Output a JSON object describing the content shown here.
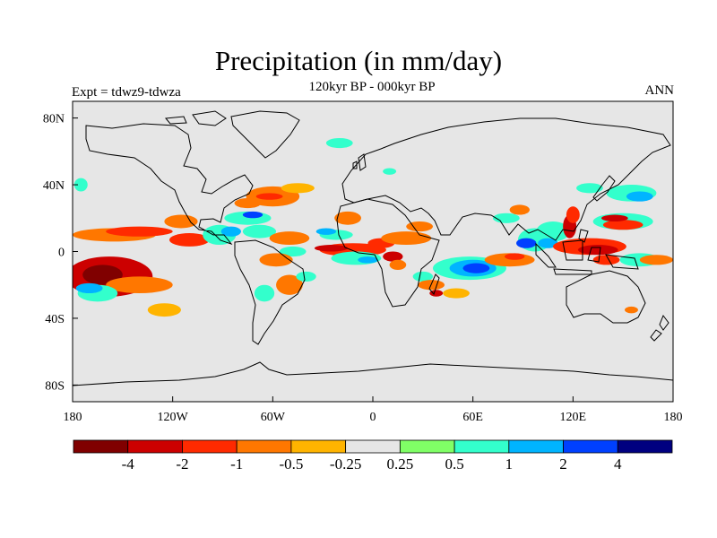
{
  "title": "Precipitation (in mm/day)",
  "subtitle": "120kyr BP - 000kyr BP",
  "left_label": "Expt = tdwz9-tdwza",
  "right_label": "ANN",
  "map": {
    "lon_range": [
      -180,
      180
    ],
    "lat_range": [
      -90,
      90
    ],
    "background_color": "#e6e6e6",
    "x_ticks": [
      {
        "value": -180,
        "label": "180"
      },
      {
        "value": -120,
        "label": "120W"
      },
      {
        "value": -60,
        "label": "60W"
      },
      {
        "value": 0,
        "label": "0"
      },
      {
        "value": 60,
        "label": "60E"
      },
      {
        "value": 120,
        "label": "120E"
      },
      {
        "value": 180,
        "label": "180"
      }
    ],
    "y_ticks": [
      {
        "value": 80,
        "label": "80N"
      },
      {
        "value": 40,
        "label": "40N"
      },
      {
        "value": 0,
        "label": "0"
      },
      {
        "value": -40,
        "label": "40S"
      },
      {
        "value": -80,
        "label": "80S"
      }
    ]
  },
  "colorbar": {
    "colors": [
      "#800000",
      "#cc0000",
      "#ff2a00",
      "#ff7700",
      "#ffb400",
      "#e6e6e6",
      "#80ff66",
      "#33ffcc",
      "#00b4ff",
      "#0040ff",
      "#000080"
    ],
    "labels": [
      "-4",
      "-2",
      "-1",
      "-0.5",
      "-0.25",
      "0.25",
      "0.5",
      "1",
      "2",
      "4"
    ]
  },
  "anomalies": [
    {
      "lon": -158,
      "lat": -15,
      "rx": 26,
      "ry": 12,
      "level": -2
    },
    {
      "lon": -162,
      "lat": -14,
      "rx": 12,
      "ry": 6,
      "level": -4
    },
    {
      "lon": -140,
      "lat": -20,
      "rx": 20,
      "ry": 5,
      "level": -0.5
    },
    {
      "lon": -125,
      "lat": -35,
      "rx": 10,
      "ry": 4,
      "level": -0.25
    },
    {
      "lon": -165,
      "lat": -25,
      "rx": 12,
      "ry": 5,
      "level": 0.5
    },
    {
      "lon": -170,
      "lat": -22,
      "rx": 8,
      "ry": 3,
      "level": 1
    },
    {
      "lon": -155,
      "lat": 10,
      "rx": 25,
      "ry": 4,
      "level": -0.5
    },
    {
      "lon": -140,
      "lat": 12,
      "rx": 20,
      "ry": 3,
      "level": -1
    },
    {
      "lon": -110,
      "lat": 7,
      "rx": 12,
      "ry": 4,
      "level": -1
    },
    {
      "lon": -115,
      "lat": 18,
      "rx": 10,
      "ry": 4,
      "level": -0.5
    },
    {
      "lon": -92,
      "lat": 10,
      "rx": 10,
      "ry": 6,
      "level": 0.5
    },
    {
      "lon": -85,
      "lat": 12,
      "rx": 6,
      "ry": 3,
      "level": 1
    },
    {
      "lon": -75,
      "lat": 20,
      "rx": 14,
      "ry": 4,
      "level": 0.5
    },
    {
      "lon": -72,
      "lat": 22,
      "rx": 6,
      "ry": 2,
      "level": 2
    },
    {
      "lon": -68,
      "lat": 12,
      "rx": 10,
      "ry": 4,
      "level": 0.5
    },
    {
      "lon": -75,
      "lat": 29,
      "rx": 8,
      "ry": 3,
      "level": -0.5
    },
    {
      "lon": -60,
      "lat": 33,
      "rx": 16,
      "ry": 6,
      "level": -0.5
    },
    {
      "lon": -62,
      "lat": 33,
      "rx": 8,
      "ry": 2,
      "level": -1
    },
    {
      "lon": -45,
      "lat": 38,
      "rx": 10,
      "ry": 3,
      "level": -0.25
    },
    {
      "lon": -50,
      "lat": 8,
      "rx": 12,
      "ry": 4,
      "level": -0.5
    },
    {
      "lon": -48,
      "lat": 0,
      "rx": 8,
      "ry": 3,
      "level": 0.5
    },
    {
      "lon": -58,
      "lat": -5,
      "rx": 10,
      "ry": 4,
      "level": -0.5
    },
    {
      "lon": -50,
      "lat": -20,
      "rx": 8,
      "ry": 6,
      "level": -0.5
    },
    {
      "lon": -65,
      "lat": -25,
      "rx": 6,
      "ry": 5,
      "level": 0.5
    },
    {
      "lon": -40,
      "lat": -15,
      "rx": 6,
      "ry": 3,
      "level": 0.5
    },
    {
      "lon": -15,
      "lat": 20,
      "rx": 8,
      "ry": 4,
      "level": -0.5
    },
    {
      "lon": -22,
      "lat": 10,
      "rx": 10,
      "ry": 3,
      "level": 0.5
    },
    {
      "lon": -28,
      "lat": 12,
      "rx": 6,
      "ry": 2,
      "level": 1
    },
    {
      "lon": -12,
      "lat": 1,
      "rx": 20,
      "ry": 4,
      "level": -1
    },
    {
      "lon": -25,
      "lat": 2,
      "rx": 10,
      "ry": 2,
      "level": -2
    },
    {
      "lon": -10,
      "lat": -4,
      "rx": 15,
      "ry": 4,
      "level": 0.5
    },
    {
      "lon": -3,
      "lat": -5,
      "rx": 6,
      "ry": 2,
      "level": 1
    },
    {
      "lon": 5,
      "lat": 5,
      "rx": 8,
      "ry": 3,
      "level": -1
    },
    {
      "lon": 12,
      "lat": -3,
      "rx": 6,
      "ry": 3,
      "level": -2
    },
    {
      "lon": 15,
      "lat": -8,
      "rx": 5,
      "ry": 3,
      "level": -0.5
    },
    {
      "lon": 20,
      "lat": 8,
      "rx": 15,
      "ry": 4,
      "level": -0.5
    },
    {
      "lon": 28,
      "lat": 15,
      "rx": 8,
      "ry": 3,
      "level": -0.5
    },
    {
      "lon": 30,
      "lat": -15,
      "rx": 6,
      "ry": 3,
      "level": 0.5
    },
    {
      "lon": 35,
      "lat": -20,
      "rx": 8,
      "ry": 3,
      "level": -0.5
    },
    {
      "lon": 38,
      "lat": -25,
      "rx": 4,
      "ry": 2,
      "level": -2
    },
    {
      "lon": 50,
      "lat": -25,
      "rx": 8,
      "ry": 3,
      "level": -0.25
    },
    {
      "lon": 58,
      "lat": -10,
      "rx": 22,
      "ry": 7,
      "level": 0.5
    },
    {
      "lon": 60,
      "lat": -10,
      "rx": 14,
      "ry": 5,
      "level": 1
    },
    {
      "lon": 62,
      "lat": -10,
      "rx": 8,
      "ry": 3,
      "level": 2
    },
    {
      "lon": 82,
      "lat": -5,
      "rx": 15,
      "ry": 4,
      "level": -0.5
    },
    {
      "lon": 85,
      "lat": -3,
      "rx": 6,
      "ry": 2,
      "level": -1
    },
    {
      "lon": 97,
      "lat": 7,
      "rx": 10,
      "ry": 7,
      "level": 0.5
    },
    {
      "lon": 92,
      "lat": 5,
      "rx": 6,
      "ry": 3,
      "level": 2
    },
    {
      "lon": 108,
      "lat": 12,
      "rx": 10,
      "ry": 6,
      "level": 0.5
    },
    {
      "lon": 105,
      "lat": 5,
      "rx": 6,
      "ry": 3,
      "level": 1
    },
    {
      "lon": 118,
      "lat": 15,
      "rx": 4,
      "ry": 7,
      "level": -2
    },
    {
      "lon": 120,
      "lat": 22,
      "rx": 4,
      "ry": 5,
      "level": -1
    },
    {
      "lon": 130,
      "lat": 3,
      "rx": 22,
      "ry": 5,
      "level": -1
    },
    {
      "lon": 135,
      "lat": 1,
      "rx": 12,
      "ry": 3,
      "level": -2
    },
    {
      "lon": 140,
      "lat": -5,
      "rx": 8,
      "ry": 3,
      "level": -1
    },
    {
      "lon": 150,
      "lat": 18,
      "rx": 18,
      "ry": 5,
      "level": 0.5
    },
    {
      "lon": 150,
      "lat": 16,
      "rx": 12,
      "ry": 3,
      "level": -1
    },
    {
      "lon": 145,
      "lat": 20,
      "rx": 8,
      "ry": 2,
      "level": -2
    },
    {
      "lon": 155,
      "lat": 35,
      "rx": 15,
      "ry": 5,
      "level": 0.5
    },
    {
      "lon": 160,
      "lat": 33,
      "rx": 8,
      "ry": 3,
      "level": 1
    },
    {
      "lon": 130,
      "lat": 38,
      "rx": 8,
      "ry": 3,
      "level": 0.5
    },
    {
      "lon": 160,
      "lat": -5,
      "rx": 12,
      "ry": 4,
      "level": 0.5
    },
    {
      "lon": 170,
      "lat": -5,
      "rx": 10,
      "ry": 3,
      "level": -0.5
    },
    {
      "lon": 155,
      "lat": -35,
      "rx": 4,
      "ry": 2,
      "level": -0.5
    },
    {
      "lon": -20,
      "lat": 65,
      "rx": 8,
      "ry": 3,
      "level": 0.5
    },
    {
      "lon": 10,
      "lat": 48,
      "rx": 4,
      "ry": 2,
      "level": 0.5
    },
    {
      "lon": 80,
      "lat": 20,
      "rx": 8,
      "ry": 3,
      "level": 0.5
    },
    {
      "lon": 88,
      "lat": 25,
      "rx": 6,
      "ry": 3,
      "level": -0.5
    },
    {
      "lon": -175,
      "lat": 40,
      "rx": 4,
      "ry": 4,
      "level": 0.5
    }
  ]
}
